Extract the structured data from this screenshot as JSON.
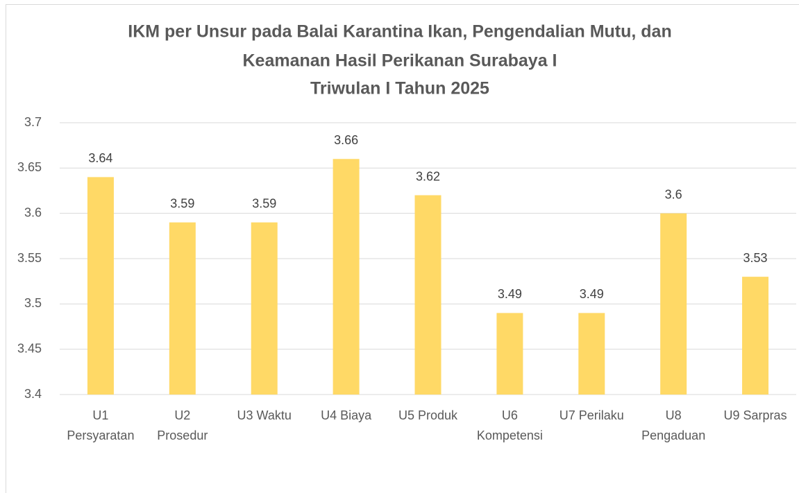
{
  "chart_data": {
    "type": "bar",
    "title": [
      "IKM per Unsur pada Balai Karantina Ikan, Pengendalian Mutu, dan",
      "Keamanan Hasil Perikanan Surabaya I"
    ],
    "subtitle": "Triwulan I Tahun 2025",
    "categories": [
      [
        "U1",
        "Persyaratan"
      ],
      [
        "U2",
        "Prosedur"
      ],
      [
        "U3 Waktu"
      ],
      [
        "U4 Biaya"
      ],
      [
        "U5 Produk"
      ],
      [
        "U6",
        "Kompetensi"
      ],
      [
        "U7 Perilaku"
      ],
      [
        "U8",
        "Pengaduan"
      ],
      [
        "U9 Sarpras"
      ]
    ],
    "values": [
      3.64,
      3.59,
      3.59,
      3.66,
      3.62,
      3.49,
      3.49,
      3.6,
      3.53
    ],
    "color": "#ffd966",
    "ylim": [
      3.4,
      3.7
    ],
    "yticks": [
      3.4,
      3.45,
      3.5,
      3.55,
      3.6,
      3.65,
      3.7
    ],
    "grid": true
  }
}
